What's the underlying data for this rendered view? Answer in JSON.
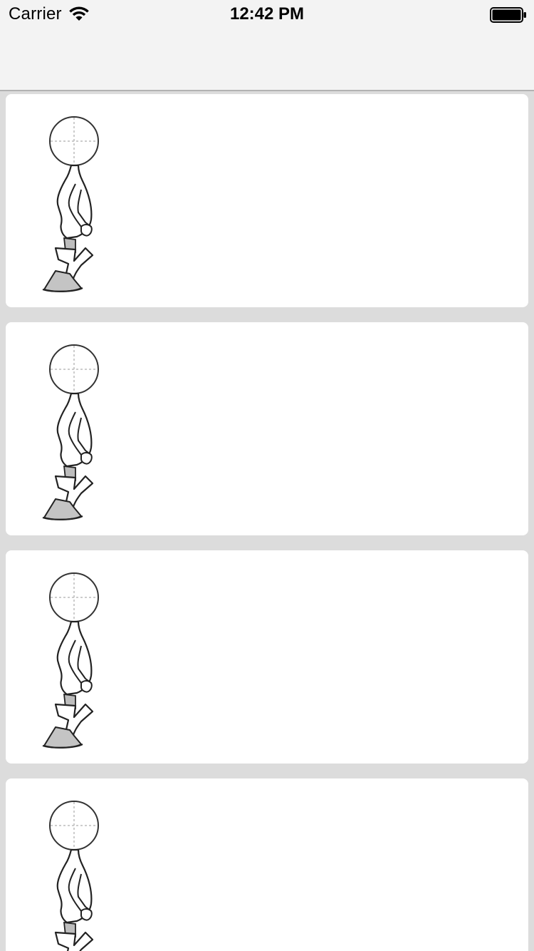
{
  "status_bar": {
    "carrier": "Carrier",
    "time": "12:42 PM",
    "wifi_icon": "wifi-icon",
    "battery_icon": "battery-icon"
  },
  "navbar": {
    "title": ""
  },
  "list": {
    "items": [
      {
        "image": "stick-figure-illustration"
      },
      {
        "image": "stick-figure-illustration"
      },
      {
        "image": "stick-figure-illustration"
      },
      {
        "image": "stick-figure-illustration"
      }
    ]
  },
  "colors": {
    "navbar_bg": "#f3f3f3",
    "list_bg": "#dcdcdc",
    "card_bg": "#ffffff",
    "figure_fill": "#c4c4c4"
  }
}
